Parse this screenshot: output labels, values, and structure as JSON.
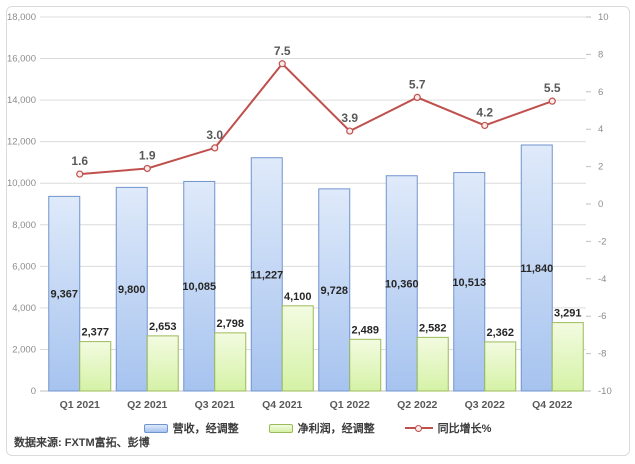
{
  "source_note": "数据来源: FXTM富拓、彭博",
  "chart_data": {
    "type": "combo",
    "subtype": "bar+line",
    "grid": true,
    "legend_position": "bottom",
    "categories": [
      "Q1 2021",
      "Q2 2021",
      "Q3 2021",
      "Q4 2021",
      "Q1 2022",
      "Q2 2022",
      "Q3 2022",
      "Q4 2022"
    ],
    "series": [
      {
        "name": "营收，经调整",
        "type": "bar",
        "axis": "left",
        "values": [
          9367,
          9800,
          10085,
          11227,
          9728,
          10360,
          10513,
          11840
        ],
        "fill_top": "#DFEAFA",
        "fill_bottom": "#A6C3EF",
        "border": "#7094CC",
        "label_position": "inside-center"
      },
      {
        "name": "净利润，经调整",
        "type": "bar",
        "axis": "left",
        "values": [
          2377,
          2653,
          2798,
          4100,
          2489,
          2582,
          2362,
          3291
        ],
        "fill_top": "#F3FBE1",
        "fill_bottom": "#D5F2A6",
        "border": "#9BBB59",
        "label_position": "outside-end"
      },
      {
        "name": "同比增长%",
        "type": "line",
        "axis": "right",
        "values": [
          1.6,
          1.9,
          3.0,
          7.5,
          3.9,
          5.7,
          4.2,
          5.5
        ],
        "color": "#C0504D",
        "marker_fill": "#F9ECEB"
      }
    ],
    "left_axis": {
      "min": 0,
      "max": 18000,
      "step": 2000
    },
    "right_axis": {
      "min": -10,
      "max": 10,
      "step": 2
    },
    "colors": {
      "gridline": "#DCDCDC",
      "axis_line": "#BFBFBF",
      "axis_text": "#8C8C8C",
      "data_label": "#262626",
      "line_label": "#595959",
      "category_label": "#595959"
    }
  }
}
